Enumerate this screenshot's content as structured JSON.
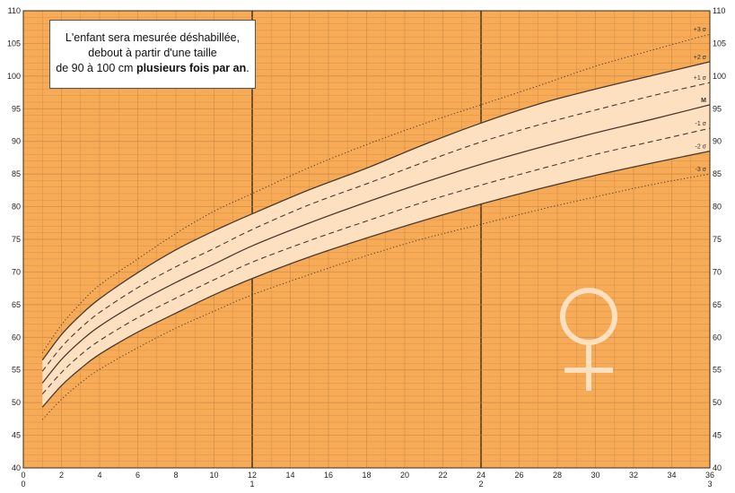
{
  "chart_data": {
    "type": "line",
    "title": "",
    "xlabel": "",
    "ylabel": "",
    "xlim": [
      0,
      36
    ],
    "ylim": [
      40,
      110
    ],
    "x_ticks": [
      0,
      2,
      4,
      6,
      8,
      10,
      12,
      14,
      16,
      18,
      20,
      22,
      24,
      26,
      28,
      30,
      32,
      34,
      36
    ],
    "x_year_ticks": [
      {
        "month": 0,
        "label": "0"
      },
      {
        "month": 12,
        "label": "1"
      },
      {
        "month": 24,
        "label": "2"
      },
      {
        "month": 36,
        "label": "3"
      }
    ],
    "y_ticks": [
      40,
      45,
      50,
      55,
      60,
      65,
      70,
      75,
      80,
      85,
      90,
      95,
      100,
      105,
      110
    ],
    "x": [
      1,
      2,
      3,
      4,
      6,
      8,
      10,
      12,
      15,
      18,
      21,
      24,
      27,
      30,
      33,
      36
    ],
    "series": [
      {
        "name": "+3 σ",
        "style": "dotted",
        "values": [
          57.6,
          61.9,
          65.2,
          68.0,
          72.0,
          75.9,
          79.3,
          82.0,
          86.0,
          89.5,
          92.7,
          95.6,
          98.5,
          101.5,
          104.0,
          106.4
        ]
      },
      {
        "name": "+2 σ",
        "style": "solid",
        "values": [
          56.5,
          60.4,
          63.4,
          65.9,
          69.9,
          73.4,
          76.3,
          78.9,
          82.6,
          85.9,
          89.5,
          92.8,
          95.7,
          98.0,
          100.1,
          102.2
        ]
      },
      {
        "name": "+1 σ",
        "style": "dashed",
        "values": [
          54.8,
          58.5,
          61.4,
          63.8,
          67.6,
          70.8,
          73.6,
          76.5,
          80.3,
          83.5,
          86.8,
          89.9,
          92.5,
          94.8,
          97.0,
          99.0
        ]
      },
      {
        "name": "M",
        "style": "solid",
        "values": [
          53.0,
          56.6,
          59.4,
          61.7,
          65.3,
          68.4,
          71.2,
          74.0,
          77.5,
          80.7,
          83.7,
          86.5,
          89.0,
          91.3,
          93.4,
          95.6
        ]
      },
      {
        "name": "-1 σ",
        "style": "dashed",
        "values": [
          51.3,
          54.6,
          57.3,
          59.5,
          63.0,
          66.0,
          68.8,
          71.5,
          74.8,
          77.8,
          80.7,
          83.3,
          85.7,
          88.0,
          90.0,
          92.0
        ]
      },
      {
        "name": "-2 σ",
        "style": "solid",
        "values": [
          49.3,
          52.6,
          55.2,
          57.4,
          60.8,
          63.7,
          66.5,
          69.0,
          72.3,
          75.2,
          77.9,
          80.4,
          82.7,
          84.8,
          86.7,
          88.5
        ]
      },
      {
        "name": "-3 σ",
        "style": "dotted",
        "values": [
          47.4,
          50.5,
          53.0,
          55.1,
          58.4,
          61.4,
          64.0,
          66.5,
          69.6,
          72.5,
          75.1,
          77.3,
          79.5,
          81.5,
          83.4,
          85.0
        ]
      }
    ],
    "band": {
      "upper": "+2 σ",
      "lower": "-2 σ",
      "color": "#fde0bf"
    },
    "annotation": {
      "line1": "L'enfant sera mesurée déshabillée,",
      "line2": "debout à partir d'une taille",
      "line3_prefix": "de 90 à 100 cm ",
      "line3_bold": "plusieurs fois par an",
      "line3_suffix": "."
    },
    "symbol": "female-symbol",
    "colors": {
      "background": "#f7ab57",
      "band": "#fde0bf",
      "grid_minor": "#c98a46",
      "grid_major": "#3a2a1a",
      "curve": "#4a3a30",
      "symbol": "#fde0bf"
    }
  }
}
